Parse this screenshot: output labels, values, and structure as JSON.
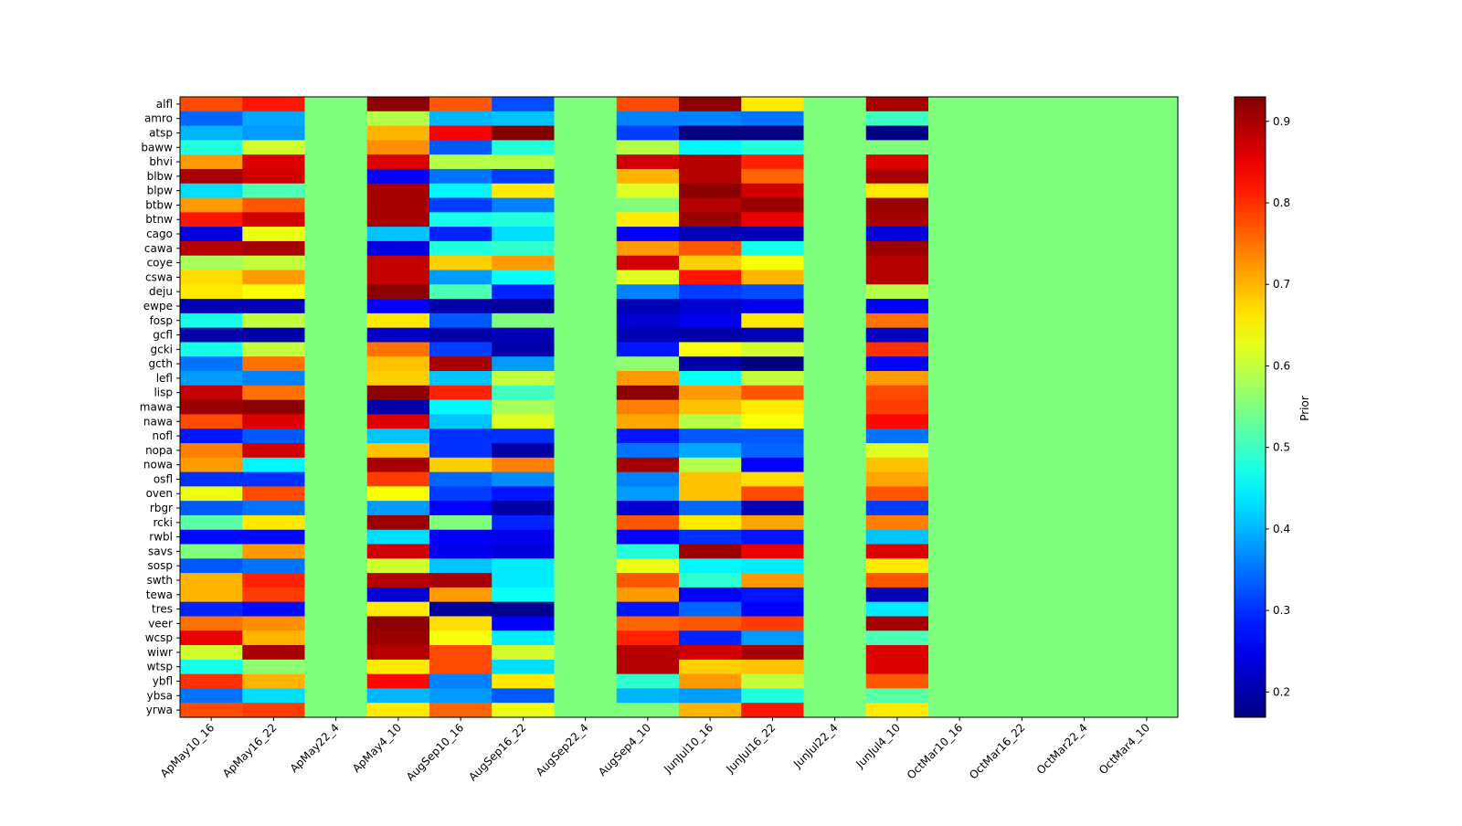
{
  "chart_data": {
    "type": "heatmap",
    "title": "",
    "xlabel": "",
    "ylabel": "",
    "colormap": "jet",
    "colorbar": {
      "label": "Prior",
      "range": [
        0.169,
        0.93
      ],
      "ticks": [
        0.2,
        0.3,
        0.4,
        0.5,
        0.6,
        0.7,
        0.8,
        0.9
      ]
    },
    "x": [
      "ApMay10_16",
      "ApMay16_22",
      "ApMay22_4",
      "ApMay4_10",
      "AugSep10_16",
      "AugSep16_22",
      "AugSep22_4",
      "AugSep4_10",
      "JunJul10_16",
      "JunJul16_22",
      "JunJul22_4",
      "JunJul4_10",
      "OctMar10_16",
      "OctMar16_22",
      "OctMar22_4",
      "OctMar4_10"
    ],
    "y": [
      "alfl",
      "amro",
      "atsp",
      "baww",
      "bhvi",
      "blbw",
      "blpw",
      "btbw",
      "btnw",
      "cago",
      "cawa",
      "coye",
      "cswa",
      "deju",
      "ewpe",
      "fosp",
      "gcfl",
      "gcki",
      "gcth",
      "lefl",
      "lisp",
      "mawa",
      "nawa",
      "nofl",
      "nopa",
      "nowa",
      "osfl",
      "oven",
      "rbgr",
      "rcki",
      "rwbl",
      "savs",
      "sosp",
      "swth",
      "tewa",
      "tres",
      "veer",
      "wcsp",
      "wiwr",
      "wtsp",
      "ybfl",
      "ybsa",
      "yrwa"
    ],
    "values": [
      [
        0.78,
        0.82,
        0.55,
        0.92,
        0.77,
        0.32,
        0.55,
        0.78,
        0.92,
        0.66,
        0.55,
        0.9,
        0.55,
        0.55,
        0.55,
        0.55
      ],
      [
        0.34,
        0.39,
        0.55,
        0.59,
        0.4,
        0.41,
        0.55,
        0.36,
        0.36,
        0.35,
        0.55,
        0.5,
        0.55,
        0.55,
        0.55,
        0.55
      ],
      [
        0.4,
        0.38,
        0.55,
        0.7,
        0.84,
        0.93,
        0.55,
        0.31,
        0.17,
        0.17,
        0.55,
        0.17,
        0.55,
        0.55,
        0.55,
        0.55
      ],
      [
        0.48,
        0.61,
        0.55,
        0.73,
        0.33,
        0.48,
        0.55,
        0.59,
        0.45,
        0.48,
        0.55,
        0.55,
        0.55,
        0.55,
        0.55,
        0.55
      ],
      [
        0.72,
        0.86,
        0.55,
        0.86,
        0.59,
        0.59,
        0.55,
        0.87,
        0.89,
        0.81,
        0.55,
        0.86,
        0.55,
        0.55,
        0.55,
        0.55
      ],
      [
        0.9,
        0.87,
        0.55,
        0.26,
        0.35,
        0.31,
        0.55,
        0.7,
        0.89,
        0.76,
        0.55,
        0.9,
        0.55,
        0.55,
        0.55,
        0.55
      ],
      [
        0.43,
        0.51,
        0.55,
        0.9,
        0.45,
        0.66,
        0.55,
        0.62,
        0.92,
        0.87,
        0.55,
        0.66,
        0.55,
        0.55,
        0.55,
        0.55
      ],
      [
        0.72,
        0.77,
        0.55,
        0.9,
        0.31,
        0.36,
        0.55,
        0.55,
        0.89,
        0.91,
        0.55,
        0.91,
        0.55,
        0.55,
        0.55,
        0.55
      ],
      [
        0.82,
        0.87,
        0.55,
        0.9,
        0.47,
        0.48,
        0.55,
        0.66,
        0.91,
        0.85,
        0.55,
        0.9,
        0.55,
        0.55,
        0.55,
        0.55
      ],
      [
        0.24,
        0.63,
        0.55,
        0.41,
        0.29,
        0.43,
        0.55,
        0.26,
        0.21,
        0.21,
        0.55,
        0.24,
        0.55,
        0.55,
        0.55,
        0.55
      ],
      [
        0.89,
        0.9,
        0.55,
        0.24,
        0.48,
        0.49,
        0.55,
        0.72,
        0.77,
        0.47,
        0.55,
        0.91,
        0.55,
        0.55,
        0.55,
        0.55
      ],
      [
        0.58,
        0.6,
        0.55,
        0.88,
        0.68,
        0.72,
        0.55,
        0.87,
        0.68,
        0.64,
        0.55,
        0.89,
        0.55,
        0.55,
        0.55,
        0.55
      ],
      [
        0.67,
        0.72,
        0.55,
        0.88,
        0.38,
        0.46,
        0.55,
        0.62,
        0.82,
        0.7,
        0.55,
        0.89,
        0.55,
        0.55,
        0.55,
        0.55
      ],
      [
        0.66,
        0.64,
        0.55,
        0.92,
        0.51,
        0.29,
        0.55,
        0.36,
        0.31,
        0.32,
        0.55,
        0.59,
        0.55,
        0.55,
        0.55,
        0.55
      ],
      [
        0.21,
        0.21,
        0.55,
        0.26,
        0.2,
        0.19,
        0.55,
        0.21,
        0.23,
        0.25,
        0.55,
        0.26,
        0.55,
        0.55,
        0.55,
        0.55
      ],
      [
        0.47,
        0.6,
        0.55,
        0.66,
        0.33,
        0.55,
        0.55,
        0.23,
        0.25,
        0.66,
        0.55,
        0.75,
        0.55,
        0.55,
        0.55,
        0.55
      ],
      [
        0.2,
        0.2,
        0.55,
        0.22,
        0.2,
        0.21,
        0.55,
        0.21,
        0.2,
        0.21,
        0.55,
        0.22,
        0.55,
        0.55,
        0.55,
        0.55
      ],
      [
        0.47,
        0.6,
        0.55,
        0.75,
        0.31,
        0.2,
        0.55,
        0.28,
        0.64,
        0.61,
        0.55,
        0.8,
        0.55,
        0.55,
        0.55,
        0.55
      ],
      [
        0.35,
        0.75,
        0.55,
        0.69,
        0.9,
        0.38,
        0.55,
        0.56,
        0.2,
        0.17,
        0.55,
        0.26,
        0.55,
        0.55,
        0.55,
        0.55
      ],
      [
        0.38,
        0.36,
        0.55,
        0.68,
        0.41,
        0.6,
        0.55,
        0.72,
        0.46,
        0.6,
        0.55,
        0.72,
        0.55,
        0.55,
        0.55,
        0.55
      ],
      [
        0.88,
        0.75,
        0.55,
        0.92,
        0.81,
        0.5,
        0.55,
        0.92,
        0.72,
        0.77,
        0.55,
        0.78,
        0.55,
        0.55,
        0.55,
        0.55
      ],
      [
        0.91,
        0.92,
        0.55,
        0.2,
        0.45,
        0.58,
        0.55,
        0.74,
        0.69,
        0.66,
        0.55,
        0.79,
        0.55,
        0.55,
        0.55,
        0.55
      ],
      [
        0.78,
        0.86,
        0.55,
        0.86,
        0.41,
        0.62,
        0.55,
        0.71,
        0.59,
        0.64,
        0.55,
        0.83,
        0.55,
        0.55,
        0.55,
        0.55
      ],
      [
        0.28,
        0.33,
        0.55,
        0.41,
        0.3,
        0.3,
        0.55,
        0.28,
        0.33,
        0.33,
        0.55,
        0.35,
        0.55,
        0.55,
        0.55,
        0.55
      ],
      [
        0.74,
        0.87,
        0.55,
        0.69,
        0.3,
        0.2,
        0.55,
        0.35,
        0.39,
        0.34,
        0.55,
        0.62,
        0.55,
        0.55,
        0.55,
        0.55
      ],
      [
        0.72,
        0.45,
        0.55,
        0.9,
        0.68,
        0.74,
        0.55,
        0.9,
        0.59,
        0.26,
        0.55,
        0.69,
        0.55,
        0.55,
        0.55,
        0.55
      ],
      [
        0.3,
        0.3,
        0.55,
        0.79,
        0.34,
        0.37,
        0.55,
        0.36,
        0.69,
        0.67,
        0.55,
        0.71,
        0.55,
        0.55,
        0.55,
        0.55
      ],
      [
        0.63,
        0.78,
        0.55,
        0.64,
        0.31,
        0.28,
        0.55,
        0.38,
        0.69,
        0.78,
        0.55,
        0.77,
        0.55,
        0.55,
        0.55,
        0.55
      ],
      [
        0.33,
        0.35,
        0.55,
        0.38,
        0.26,
        0.2,
        0.55,
        0.23,
        0.34,
        0.21,
        0.55,
        0.31,
        0.55,
        0.55,
        0.55,
        0.55
      ],
      [
        0.52,
        0.66,
        0.55,
        0.91,
        0.55,
        0.29,
        0.55,
        0.77,
        0.66,
        0.71,
        0.55,
        0.74,
        0.55,
        0.55,
        0.55,
        0.55
      ],
      [
        0.27,
        0.27,
        0.55,
        0.43,
        0.26,
        0.25,
        0.55,
        0.26,
        0.3,
        0.28,
        0.55,
        0.41,
        0.55,
        0.55,
        0.55,
        0.55
      ],
      [
        0.55,
        0.72,
        0.55,
        0.87,
        0.25,
        0.24,
        0.55,
        0.48,
        0.91,
        0.85,
        0.55,
        0.86,
        0.55,
        0.55,
        0.55,
        0.55
      ],
      [
        0.33,
        0.35,
        0.55,
        0.61,
        0.41,
        0.44,
        0.55,
        0.63,
        0.45,
        0.44,
        0.55,
        0.66,
        0.55,
        0.55,
        0.55,
        0.55
      ],
      [
        0.7,
        0.81,
        0.55,
        0.89,
        0.9,
        0.44,
        0.55,
        0.77,
        0.49,
        0.72,
        0.55,
        0.77,
        0.55,
        0.55,
        0.55,
        0.55
      ],
      [
        0.7,
        0.79,
        0.55,
        0.23,
        0.72,
        0.46,
        0.55,
        0.72,
        0.26,
        0.28,
        0.55,
        0.21,
        0.55,
        0.55,
        0.55,
        0.55
      ],
      [
        0.29,
        0.27,
        0.55,
        0.66,
        0.19,
        0.18,
        0.55,
        0.28,
        0.34,
        0.26,
        0.55,
        0.44,
        0.55,
        0.55,
        0.55,
        0.55
      ],
      [
        0.75,
        0.73,
        0.55,
        0.92,
        0.67,
        0.26,
        0.55,
        0.76,
        0.77,
        0.79,
        0.55,
        0.9,
        0.55,
        0.55,
        0.55,
        0.55
      ],
      [
        0.85,
        0.7,
        0.55,
        0.91,
        0.64,
        0.44,
        0.55,
        0.81,
        0.29,
        0.38,
        0.55,
        0.51,
        0.55,
        0.55,
        0.55,
        0.55
      ],
      [
        0.61,
        0.9,
        0.55,
        0.89,
        0.78,
        0.61,
        0.55,
        0.89,
        0.87,
        0.9,
        0.55,
        0.86,
        0.55,
        0.55,
        0.55,
        0.55
      ],
      [
        0.47,
        0.56,
        0.55,
        0.66,
        0.78,
        0.43,
        0.55,
        0.89,
        0.68,
        0.69,
        0.55,
        0.86,
        0.55,
        0.55,
        0.55,
        0.55
      ],
      [
        0.8,
        0.7,
        0.55,
        0.83,
        0.36,
        0.66,
        0.55,
        0.49,
        0.72,
        0.6,
        0.55,
        0.77,
        0.55,
        0.55,
        0.55,
        0.55
      ],
      [
        0.35,
        0.43,
        0.55,
        0.4,
        0.38,
        0.33,
        0.55,
        0.4,
        0.38,
        0.48,
        0.55,
        0.52,
        0.55,
        0.55,
        0.55,
        0.55
      ],
      [
        0.78,
        0.79,
        0.55,
        0.66,
        0.76,
        0.63,
        0.55,
        0.55,
        0.7,
        0.82,
        0.55,
        0.66,
        0.55,
        0.55,
        0.55,
        0.55
      ]
    ]
  }
}
